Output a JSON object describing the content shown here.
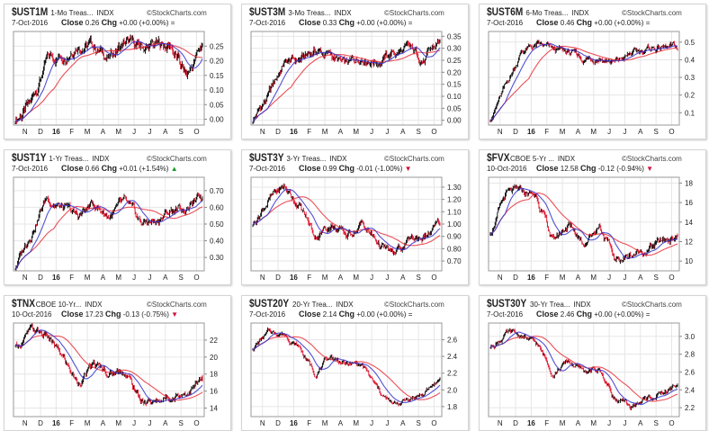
{
  "months": [
    "N",
    "D",
    "16",
    "F",
    "M",
    "A",
    "M",
    "J",
    "J",
    "A",
    "S",
    "O"
  ],
  "colors": {
    "up": "#000000",
    "down": "#e0102a",
    "ma_short": "#3333cc",
    "ma_long": "#e8303a",
    "grid": "#e6e6e6"
  },
  "watermark": "©StockCharts.com",
  "chart_data": [
    {
      "type": "bar",
      "symbol": "$UST1M",
      "name": "1-Mo Treas...",
      "exchange": "INDX",
      "date": "7-Oct-2016",
      "close_label": "Close",
      "close": "0.26",
      "chg_label": "Chg",
      "chg": "+0.00 (+0.00%)",
      "trend": "flat",
      "yticks": [
        "0.00",
        "0.05",
        "0.10",
        "0.15",
        "0.20",
        "0.25"
      ],
      "ylim": [
        -0.02,
        0.3
      ],
      "anchors": [
        0.0,
        0.05,
        0.2,
        0.22,
        0.27,
        0.25,
        0.21,
        0.26,
        0.24,
        0.25,
        0.25,
        0.14,
        0.26
      ],
      "noise": 0.03
    },
    {
      "type": "bar",
      "symbol": "$UST3M",
      "name": "3-Mo Treas...",
      "exchange": "INDX",
      "date": "7-Oct-2016",
      "close_label": "Close",
      "close": "0.33",
      "chg_label": "Chg",
      "chg": "+0.00 (+0.00%)",
      "trend": "flat",
      "yticks": [
        "0.00",
        "0.05",
        "0.10",
        "0.15",
        "0.20",
        "0.25",
        "0.30",
        "0.35"
      ],
      "ylim": [
        -0.02,
        0.37
      ],
      "anchors": [
        0.0,
        0.1,
        0.24,
        0.25,
        0.29,
        0.27,
        0.22,
        0.27,
        0.25,
        0.28,
        0.29,
        0.25,
        0.33
      ],
      "noise": 0.03
    },
    {
      "type": "bar",
      "symbol": "$UST6M",
      "name": "6-Mo Treas...",
      "exchange": "INDX",
      "date": "7-Oct-2016",
      "close_label": "Close",
      "close": "0.46",
      "chg_label": "Chg",
      "chg": "+0.00 (+0.00%)",
      "trend": "flat",
      "yticks": [
        "0.1",
        "0.2",
        "0.3",
        "0.4",
        "0.5"
      ],
      "ylim": [
        0.03,
        0.56
      ],
      "anchors": [
        0.07,
        0.25,
        0.45,
        0.48,
        0.45,
        0.44,
        0.4,
        0.42,
        0.38,
        0.43,
        0.46,
        0.47,
        0.46
      ],
      "noise": 0.03
    },
    {
      "type": "bar",
      "symbol": "$UST1Y",
      "name": "1-Yr Treas...",
      "exchange": "INDX",
      "date": "7-Oct-2016",
      "close_label": "Close",
      "close": "0.66",
      "chg_label": "Chg",
      "chg": "+0.01 (+1.54%)",
      "trend": "up",
      "yticks": [
        "0.30",
        "0.40",
        "0.50",
        "0.60",
        "0.70"
      ],
      "ylim": [
        0.22,
        0.78
      ],
      "anchors": [
        0.24,
        0.45,
        0.66,
        0.6,
        0.54,
        0.62,
        0.55,
        0.62,
        0.5,
        0.52,
        0.58,
        0.6,
        0.66
      ],
      "noise": 0.04
    },
    {
      "type": "bar",
      "symbol": "$UST3Y",
      "name": "3-Yr Treas...",
      "exchange": "INDX",
      "date": "7-Oct-2016",
      "close_label": "Close",
      "close": "0.99",
      "chg_label": "Chg",
      "chg": "-0.01 (-1.00%)",
      "trend": "down",
      "yticks": [
        "0.70",
        "0.80",
        "0.90",
        "1.00",
        "1.10",
        "1.20",
        "1.30"
      ],
      "ylim": [
        0.62,
        1.38
      ],
      "anchors": [
        1.0,
        1.2,
        1.3,
        1.15,
        0.9,
        1.0,
        0.9,
        1.0,
        0.85,
        0.74,
        0.86,
        0.9,
        0.99
      ],
      "noise": 0.05
    },
    {
      "type": "bar",
      "symbol": "$FVX",
      "name": "CBOE 5-Yr ...",
      "exchange": "INDX",
      "date": "10-Oct-2016",
      "close_label": "Close",
      "close": "12.58",
      "chg_label": "Chg",
      "chg": "-0.12 (-0.94%)",
      "trend": "down",
      "yticks": [
        "10",
        "12",
        "14",
        "16",
        "18"
      ],
      "ylim": [
        9,
        18.6
      ],
      "anchors": [
        13,
        16.8,
        17,
        16.6,
        12,
        13.8,
        12,
        13.8,
        10,
        10.6,
        11.2,
        12,
        12.58
      ],
      "noise": 0.6
    },
    {
      "type": "bar",
      "symbol": "$TNX",
      "name": "CBOE 10-Yr...",
      "exchange": "INDX",
      "date": "10-Oct-2016",
      "close_label": "Close",
      "close": "17.23",
      "chg_label": "Chg",
      "chg": "-0.13 (-0.75%)",
      "trend": "down",
      "yticks": [
        "14",
        "16",
        "18",
        "20",
        "22"
      ],
      "ylim": [
        13,
        24
      ],
      "anchors": [
        21,
        23,
        22.5,
        20,
        17,
        19,
        18,
        18.5,
        15,
        14.6,
        15.5,
        16,
        17.23
      ],
      "noise": 0.7
    },
    {
      "type": "bar",
      "symbol": "$UST20Y",
      "name": "20-Yr Trea...",
      "exchange": "INDX",
      "date": "7-Oct-2016",
      "close_label": "Close",
      "close": "2.14",
      "chg_label": "Chg",
      "chg": "+0.00 (+0.00%)",
      "trend": "flat",
      "yticks": [
        "1.8",
        "2.0",
        "2.2",
        "2.4",
        "2.6"
      ],
      "ylim": [
        1.68,
        2.8
      ],
      "anchors": [
        2.5,
        2.68,
        2.68,
        2.5,
        2.2,
        2.4,
        2.3,
        2.3,
        2.0,
        1.8,
        1.9,
        1.95,
        2.14
      ],
      "noise": 0.05
    },
    {
      "type": "bar",
      "symbol": "$UST30Y",
      "name": "30-Yr Trea...",
      "exchange": "INDX",
      "date": "7-Oct-2016",
      "close_label": "Close",
      "close": "2.46",
      "chg_label": "Chg",
      "chg": "+0.00 (+0.00%)",
      "trend": "flat",
      "yticks": [
        "2.2",
        "2.4",
        "2.6",
        "2.8",
        "3.0"
      ],
      "ylim": [
        2.1,
        3.15
      ],
      "anchors": [
        2.88,
        3.03,
        3.0,
        2.9,
        2.6,
        2.72,
        2.6,
        2.62,
        2.3,
        2.2,
        2.3,
        2.35,
        2.46
      ],
      "noise": 0.05
    }
  ]
}
